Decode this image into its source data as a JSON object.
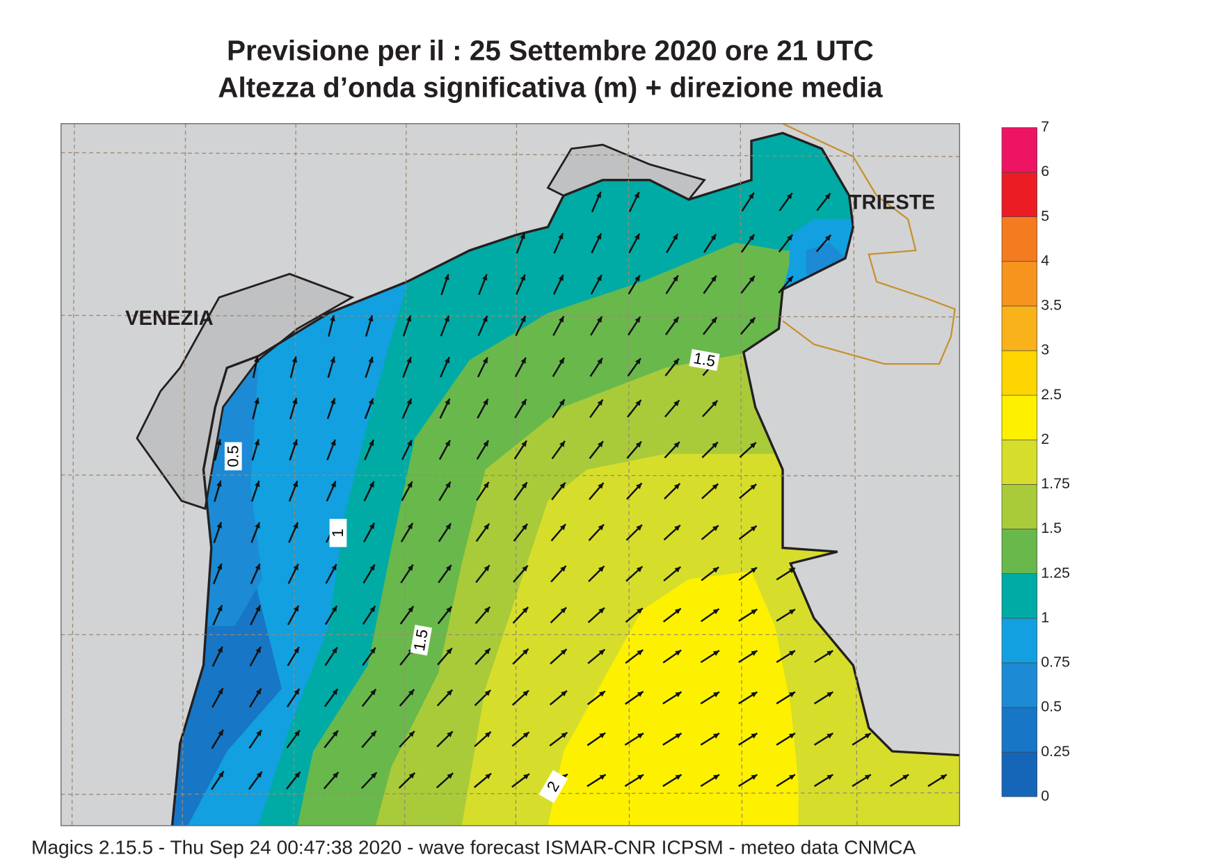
{
  "title": "Previsione per il  :  25 Settembre 2020   ore 21 UTC",
  "subtitle": "Altezza d’onda significativa (m) + direzione media",
  "map": {
    "place_labels": [
      "VENEZIA",
      "TRIESTE"
    ],
    "contour_labels": [
      0.5,
      1,
      1.5,
      1.5,
      2
    ]
  },
  "colorbar": {
    "levels": [
      0,
      0.25,
      0.5,
      0.75,
      1,
      1.25,
      1.5,
      1.75,
      2,
      2.5,
      3,
      3.5,
      4,
      5,
      6,
      7
    ],
    "colors": [
      "#1565b8",
      "#1876c6",
      "#1c8ad4",
      "#12a0e0",
      "#00aba5",
      "#69b84c",
      "#a9cb3a",
      "#d6de2b",
      "#fdf100",
      "#fdd500",
      "#f9b21a",
      "#f7941d",
      "#f47b20",
      "#ec1c24",
      "#ee1464"
    ]
  },
  "footer": "Magics 2.15.5 - Thu Sep 24 00:47:38 2020 - wave forecast  ISMAR-CNR  ICPSM - meteo data   CNMCA"
}
